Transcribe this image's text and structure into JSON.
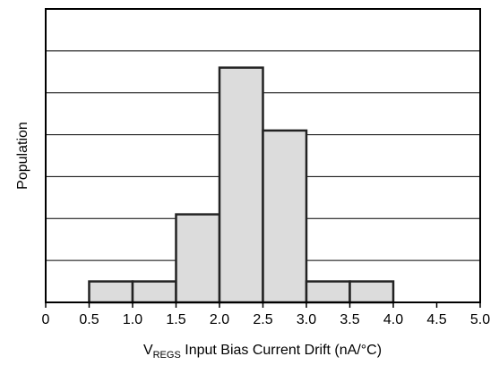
{
  "chart_data": {
    "type": "bar",
    "bins": [
      {
        "from": 0.5,
        "to": 1.0,
        "value": 0.5
      },
      {
        "from": 1.0,
        "to": 1.5,
        "value": 0.5
      },
      {
        "from": 1.5,
        "to": 2.0,
        "value": 2.1
      },
      {
        "from": 2.0,
        "to": 2.5,
        "value": 5.6
      },
      {
        "from": 2.5,
        "to": 3.0,
        "value": 4.1
      },
      {
        "from": 3.0,
        "to": 3.5,
        "value": 0.5
      },
      {
        "from": 3.5,
        "to": 4.0,
        "value": 0.5
      }
    ],
    "x_ticks": [
      "0",
      "0.5",
      "1.0",
      "1.5",
      "2.0",
      "2.5",
      "3.0",
      "3.5",
      "4.0",
      "4.5",
      "5.0"
    ],
    "xlim": [
      0,
      5
    ],
    "ylim": [
      0,
      7
    ],
    "grid": true,
    "xlabel": {
      "main": "V",
      "subscript": "REGS",
      "rest": " Input Bias Current Drift (nA/°C)"
    },
    "ylabel": "Population",
    "colors": {
      "bar_fill": "#dcdcdc",
      "bar_stroke": "#222222",
      "grid": "#000000",
      "frame": "#000000"
    }
  }
}
